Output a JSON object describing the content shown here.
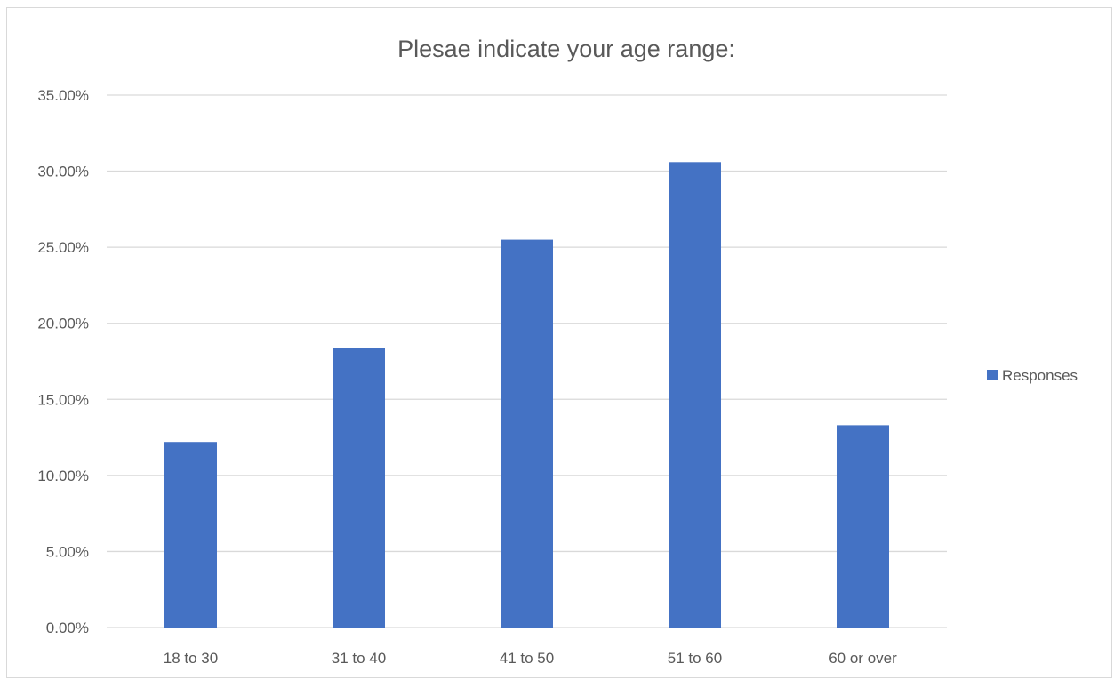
{
  "chart_data": {
    "type": "bar",
    "title": "Plesae indicate your age range:",
    "categories": [
      "18 to 30",
      "31 to 40",
      "41 to 50",
      "51 to 60",
      "60 or over"
    ],
    "series": [
      {
        "name": "Responses",
        "values": [
          12.2,
          18.4,
          25.5,
          30.6,
          13.3
        ],
        "color": "#4472c4"
      }
    ],
    "ylim": [
      0,
      35
    ],
    "yticks": [
      0,
      5,
      10,
      15,
      20,
      25,
      30,
      35
    ],
    "ytick_labels": [
      "0.00%",
      "5.00%",
      "10.00%",
      "15.00%",
      "20.00%",
      "25.00%",
      "30.00%",
      "35.00%"
    ],
    "grid": true,
    "gridline_color": "#d9d9d9",
    "legend": "right"
  }
}
